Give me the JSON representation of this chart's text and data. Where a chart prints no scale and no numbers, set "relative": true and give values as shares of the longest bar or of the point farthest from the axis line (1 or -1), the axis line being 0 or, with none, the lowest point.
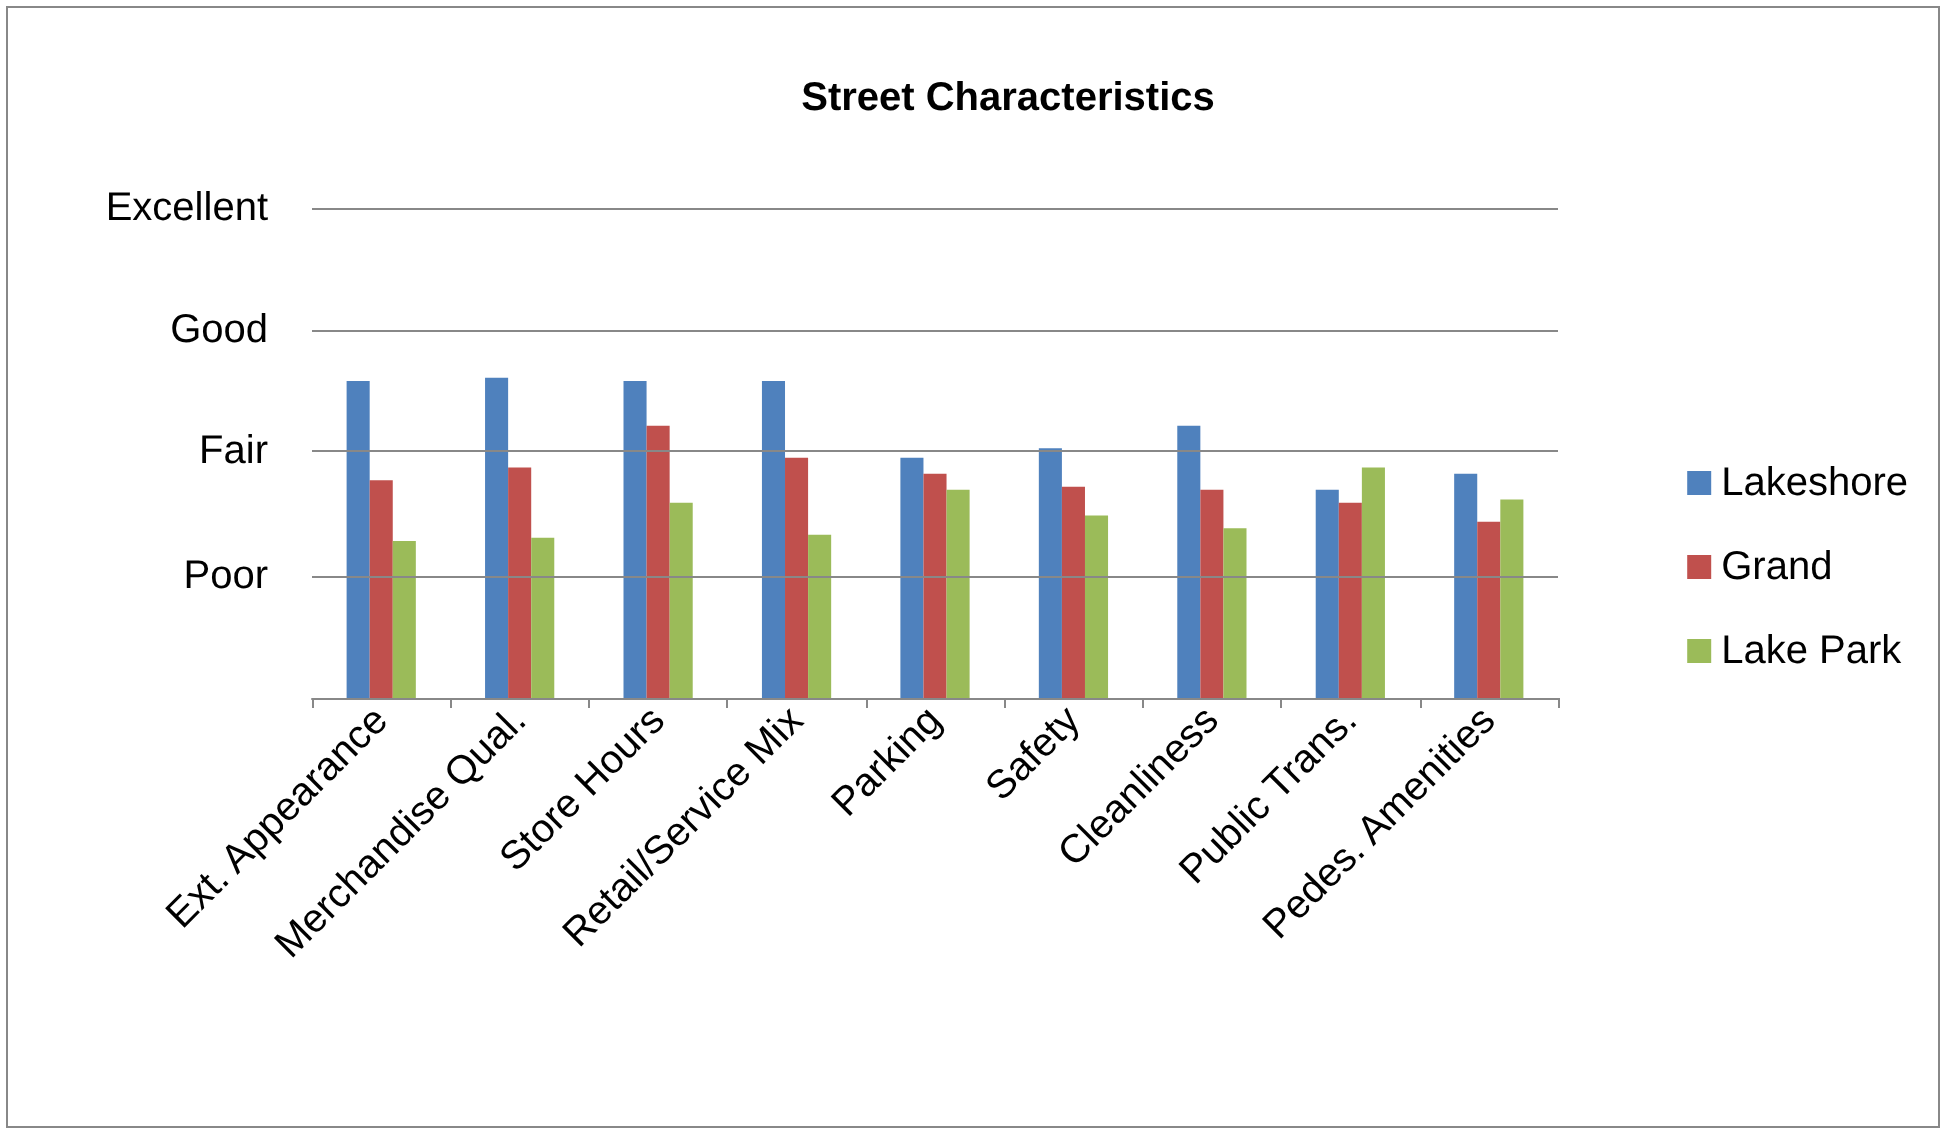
{
  "chart_data": {
    "type": "bar",
    "title": "Street Characteristics",
    "relative": true,
    "categories": [
      "Ext. Appearance",
      "Merchandise Qual.",
      "Store Hours",
      "Retail/Service Mix",
      "Parking",
      "Safety",
      "Cleanliness",
      "Public Trans.",
      "Pedes. Amenities"
    ],
    "series": [
      {
        "name": "Lakeshore",
        "color": "#4f81bd",
        "values": [
          0.99,
          1,
          0.99,
          0.99,
          0.75,
          0.78,
          0.85,
          0.65,
          0.7
        ]
      },
      {
        "name": "Grand",
        "color": "#c0504d",
        "values": [
          0.68,
          0.72,
          0.85,
          0.75,
          0.7,
          0.66,
          0.65,
          0.61,
          0.55
        ]
      },
      {
        "name": "Lake Park",
        "color": "#9bbb59",
        "values": [
          0.49,
          0.5,
          0.61,
          0.51,
          0.65,
          0.57,
          0.53,
          0.72,
          0.62
        ]
      }
    ],
    "ref_lines": [
      {
        "axis": "y",
        "value": 0.38,
        "label": "Poor",
        "color": "#888888"
      },
      {
        "axis": "y",
        "value": 0.77,
        "label": "Fair",
        "color": "#888888"
      },
      {
        "axis": "y",
        "value": 1.15,
        "label": "Good",
        "color": "#888888"
      },
      {
        "axis": "y",
        "value": 1.53,
        "label": "Excellent",
        "color": "#888888"
      }
    ],
    "legend": "right"
  }
}
